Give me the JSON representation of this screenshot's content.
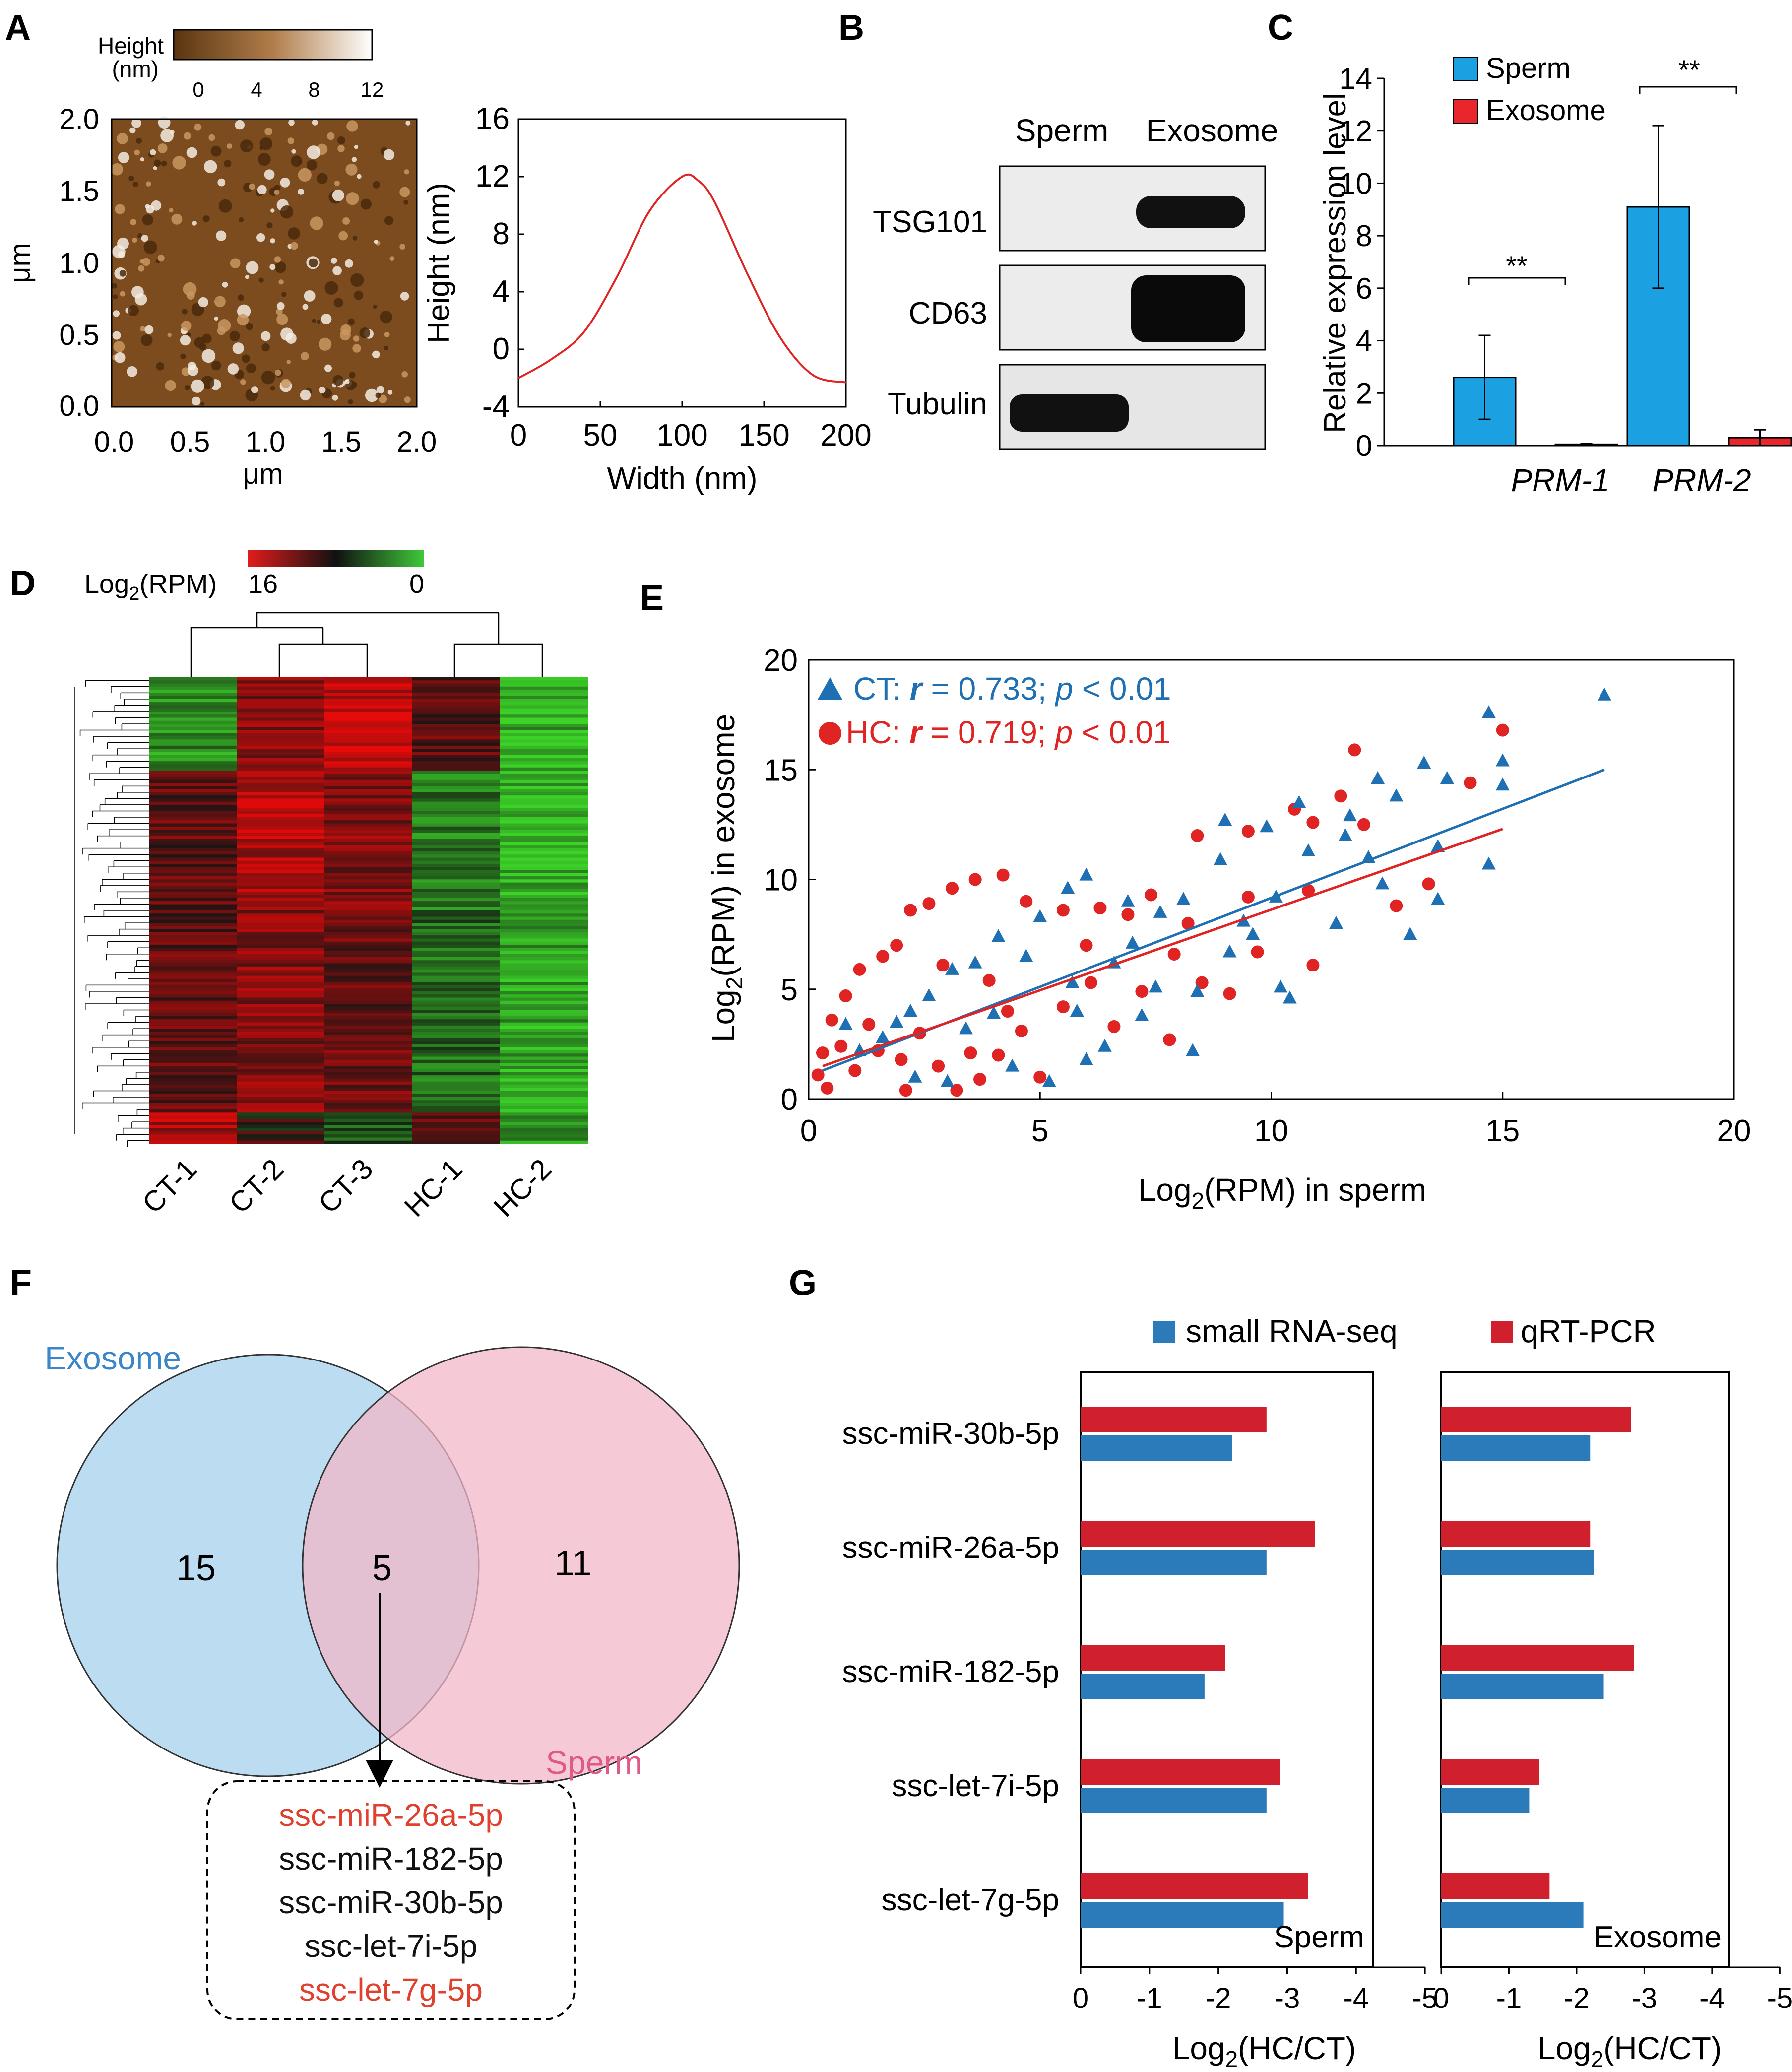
{
  "panel_letters": {
    "A": "A",
    "B": "B",
    "C": "C",
    "D": "D",
    "E": "E",
    "F": "F",
    "G": "G"
  },
  "colors": {
    "blue": "#1f6fb3",
    "red": "#e02424",
    "c_blue": "#1ba1e2",
    "c_red": "#e8262c",
    "venn_blue": "#bcdcf2",
    "venn_pink": "#f2b7c8",
    "g_blue": "#2b7bbb",
    "g_red": "#d0202e"
  },
  "panelA": {
    "colorbar": {
      "label_line1": "Height",
      "label_line2": "(nm)",
      "ticks": [
        "0",
        "4",
        "8",
        "12"
      ]
    },
    "afm": {
      "ticks": [
        "0.0",
        "0.5",
        "1.0",
        "1.5",
        "2.0"
      ],
      "xlabel": "μm",
      "ylabel": "μm"
    },
    "profile": {
      "xticks": [
        "0",
        "50",
        "100",
        "150",
        "200"
      ],
      "yticks": [
        "-4",
        "0",
        "4",
        "8",
        "12",
        "16"
      ],
      "xlabel": "Width (nm)",
      "ylabel": "Height (nm)"
    }
  },
  "panelB": {
    "col1": "Sperm",
    "col2": "Exosome",
    "rows": [
      "TSG101",
      "CD63",
      "Tubulin"
    ]
  },
  "panelC": {
    "legend": [
      "Sperm",
      "Exosome"
    ],
    "ylabel": "Relative expression level",
    "yticks": [
      "0",
      "2",
      "4",
      "6",
      "8",
      "10",
      "12",
      "14"
    ],
    "categories": [
      "PRM-1",
      "PRM-2"
    ],
    "sig": "**"
  },
  "panelD": {
    "legend_label": "Log",
    "legend_sub": "2",
    "legend_rest": "(RPM)",
    "legend_hi": "16",
    "legend_lo": "0",
    "columns": [
      "CT-1",
      "CT-2",
      "CT-3",
      "HC-1",
      "HC-2"
    ]
  },
  "panelE": {
    "ct_label": "CT: ",
    "ct_r": "r",
    "ct_rest": " = 0.733; ",
    "ct_p": "p",
    "ct_end": " < 0.01",
    "hc_label": "HC: ",
    "hc_r": "r",
    "hc_rest": " = 0.719; ",
    "hc_p": "p",
    "hc_end": " < 0.01",
    "xticks": [
      "0",
      "5",
      "10",
      "15",
      "20"
    ],
    "yticks": [
      "0",
      "5",
      "10",
      "15",
      "20"
    ],
    "xlabel_pre": "Log",
    "xlabel_sub": "2",
    "xlabel_post": "(RPM) in sperm",
    "ylabel_pre": "Log",
    "ylabel_sub": "2",
    "ylabel_post": "(RPM) in exosome"
  },
  "panelF": {
    "exosome": "Exosome",
    "sperm": "Sperm",
    "n_left": "15",
    "n_mid": "5",
    "n_right": "11",
    "list": [
      "ssc-miR-26a-5p",
      "ssc-miR-182-5p",
      "ssc-miR-30b-5p",
      "ssc-let-7i-5p",
      "ssc-let-7g-5p"
    ],
    "list_red": [
      true,
      false,
      false,
      false,
      true
    ]
  },
  "panelG": {
    "legend": [
      "small RNA-seq",
      "qRT-PCR"
    ],
    "panel_titles": [
      "Sperm",
      "Exosome"
    ],
    "xticks": [
      "0",
      "-1",
      "-2",
      "-3",
      "-4",
      "-5"
    ],
    "xlabel_pre": "Log",
    "xlabel_sub": "2",
    "xlabel_post": "(HC/CT)"
  },
  "chart_data": [
    {
      "type": "line",
      "title": "",
      "xlabel": "Width (nm)",
      "ylabel": "Height (nm)",
      "xlim": [
        0,
        200
      ],
      "ylim": [
        -4,
        16
      ],
      "x": [
        0,
        20,
        40,
        60,
        80,
        100,
        110,
        120,
        140,
        160,
        180,
        200
      ],
      "y": [
        -2,
        -0.7,
        1.2,
        5,
        9.6,
        12,
        11.7,
        10.2,
        5.2,
        0.8,
        -1.8,
        -2.3
      ]
    },
    {
      "type": "bar",
      "title": "",
      "ylabel": "Relative expression level",
      "ylim": [
        0,
        14
      ],
      "categories": [
        "PRM-1",
        "PRM-2"
      ],
      "series": [
        {
          "name": "Sperm",
          "values": [
            2.6,
            9.1
          ],
          "errors": [
            1.6,
            3.1
          ]
        },
        {
          "name": "Exosome",
          "values": [
            0.05,
            0.3
          ],
          "errors": [
            0.03,
            0.3
          ]
        }
      ]
    },
    {
      "type": "scatter",
      "title": "",
      "xlabel": "Log2(RPM) in sperm",
      "ylabel": "Log2(RPM) in exosome",
      "xlim": [
        0,
        20
      ],
      "ylim": [
        0,
        20
      ],
      "series": [
        {
          "name": "CT",
          "r": 0.733,
          "fit": [
            [
              0.3,
              1.3
            ],
            [
              17.2,
              15.0
            ]
          ],
          "points": [
            [
              17.2,
              18.4
            ],
            [
              14.7,
              17.6
            ],
            [
              15.0,
              15.4
            ],
            [
              15.0,
              14.3
            ],
            [
              13.3,
              15.3
            ],
            [
              13.8,
              14.6
            ],
            [
              12.3,
              14.6
            ],
            [
              12.7,
              13.8
            ],
            [
              10.6,
              13.5
            ],
            [
              9.9,
              12.4
            ],
            [
              9.0,
              12.7
            ],
            [
              11.6,
              12.0
            ],
            [
              14.7,
              10.7
            ],
            [
              13.6,
              9.1
            ],
            [
              13.0,
              7.5
            ],
            [
              10.2,
              5.1
            ],
            [
              10.4,
              4.6
            ],
            [
              9.6,
              7.5
            ],
            [
              8.1,
              9.1
            ],
            [
              7.6,
              8.5
            ],
            [
              6.9,
              9.0
            ],
            [
              6.0,
              10.2
            ],
            [
              5.6,
              9.6
            ],
            [
              5.0,
              8.3
            ],
            [
              4.7,
              6.5
            ],
            [
              4.1,
              7.4
            ],
            [
              3.6,
              6.2
            ],
            [
              3.1,
              5.9
            ],
            [
              2.6,
              4.7
            ],
            [
              2.2,
              4.0
            ],
            [
              1.9,
              3.5
            ],
            [
              1.6,
              2.8
            ],
            [
              1.1,
              2.2
            ],
            [
              0.8,
              3.4
            ],
            [
              2.3,
              1.0
            ],
            [
              3.0,
              0.8
            ],
            [
              4.4,
              1.5
            ],
            [
              5.2,
              0.8
            ],
            [
              6.0,
              1.8
            ],
            [
              5.7,
              5.3
            ],
            [
              6.6,
              6.2
            ],
            [
              7.5,
              5.1
            ],
            [
              8.4,
              4.9
            ],
            [
              9.1,
              6.7
            ],
            [
              8.3,
              2.2
            ],
            [
              7.2,
              3.8
            ],
            [
              6.4,
              2.4
            ],
            [
              10.8,
              11.3
            ],
            [
              11.4,
              8.0
            ],
            [
              12.4,
              9.8
            ],
            [
              13.6,
              11.5
            ],
            [
              10.1,
              9.2
            ],
            [
              11.7,
              12.9
            ],
            [
              9.4,
              8.1
            ],
            [
              8.9,
              10.9
            ],
            [
              3.4,
              3.2
            ],
            [
              4.0,
              3.9
            ],
            [
              5.8,
              4.0
            ],
            [
              7.0,
              7.1
            ],
            [
              12.1,
              11.0
            ]
          ]
        },
        {
          "name": "HC",
          "r": 0.719,
          "fit": [
            [
              0.3,
              1.5
            ],
            [
              15.0,
              12.3
            ]
          ],
          "points": [
            [
              15.0,
              16.8
            ],
            [
              11.8,
              15.9
            ],
            [
              14.3,
              14.4
            ],
            [
              11.5,
              13.8
            ],
            [
              10.5,
              13.2
            ],
            [
              10.9,
              12.6
            ],
            [
              9.5,
              12.2
            ],
            [
              8.4,
              12.0
            ],
            [
              12.0,
              12.5
            ],
            [
              13.4,
              9.8
            ],
            [
              12.7,
              8.8
            ],
            [
              10.9,
              6.1
            ],
            [
              10.8,
              9.5
            ],
            [
              9.5,
              9.2
            ],
            [
              8.2,
              8.0
            ],
            [
              7.4,
              9.3
            ],
            [
              6.9,
              8.4
            ],
            [
              6.3,
              8.7
            ],
            [
              5.5,
              8.6
            ],
            [
              4.7,
              9.0
            ],
            [
              4.2,
              10.2
            ],
            [
              3.6,
              10.0
            ],
            [
              3.1,
              9.6
            ],
            [
              2.6,
              8.9
            ],
            [
              2.2,
              8.6
            ],
            [
              1.9,
              7.0
            ],
            [
              1.6,
              6.5
            ],
            [
              1.1,
              5.9
            ],
            [
              0.8,
              4.7
            ],
            [
              0.5,
              3.6
            ],
            [
              0.3,
              2.1
            ],
            [
              0.2,
              1.1
            ],
            [
              0.4,
              0.5
            ],
            [
              1.0,
              1.3
            ],
            [
              1.5,
              2.2
            ],
            [
              2.0,
              1.8
            ],
            [
              2.4,
              3.0
            ],
            [
              2.8,
              1.5
            ],
            [
              3.2,
              0.4
            ],
            [
              3.7,
              0.9
            ],
            [
              4.1,
              2.0
            ],
            [
              4.6,
              3.1
            ],
            [
              5.0,
              1.0
            ],
            [
              5.5,
              4.2
            ],
            [
              6.1,
              5.3
            ],
            [
              6.6,
              3.3
            ],
            [
              7.2,
              4.9
            ],
            [
              7.8,
              2.7
            ],
            [
              8.5,
              5.3
            ],
            [
              9.1,
              4.8
            ],
            [
              9.7,
              6.7
            ],
            [
              7.9,
              6.6
            ],
            [
              3.9,
              5.4
            ],
            [
              2.9,
              6.1
            ],
            [
              4.3,
              4.0
            ],
            [
              6.0,
              7.0
            ],
            [
              2.1,
              0.4
            ],
            [
              1.3,
              3.4
            ],
            [
              0.7,
              2.4
            ],
            [
              3.5,
              2.1
            ]
          ]
        }
      ]
    },
    {
      "type": "bar",
      "title": "",
      "panel": "Sperm",
      "orientation": "horizontal",
      "xlabel": "Log2(HC/CT)",
      "xlim": [
        0,
        -5
      ],
      "categories": [
        "ssc-miR-30b-5p",
        "ssc-miR-26a-5p",
        "ssc-miR-182-5p",
        "ssc-let-7i-5p",
        "ssc-let-7g-5p"
      ],
      "series": [
        {
          "name": "small RNA-seq",
          "values": [
            -2.2,
            -2.7,
            -1.8,
            -2.7,
            -2.95
          ]
        },
        {
          "name": "qRT-PCR",
          "values": [
            -2.7,
            -3.4,
            -2.1,
            -2.9,
            -3.3
          ]
        }
      ]
    },
    {
      "type": "bar",
      "title": "",
      "panel": "Exosome",
      "orientation": "horizontal",
      "xlabel": "Log2(HC/CT)",
      "xlim": [
        0,
        -5
      ],
      "categories": [
        "ssc-miR-30b-5p",
        "ssc-miR-26a-5p",
        "ssc-miR-182-5p",
        "ssc-let-7i-5p",
        "ssc-let-7g-5p"
      ],
      "series": [
        {
          "name": "small RNA-seq",
          "values": [
            -2.2,
            -2.25,
            -2.4,
            -1.3,
            -2.1
          ]
        },
        {
          "name": "qRT-PCR",
          "values": [
            -2.8,
            -2.2,
            -2.85,
            -1.45,
            -1.6
          ]
        }
      ]
    }
  ]
}
